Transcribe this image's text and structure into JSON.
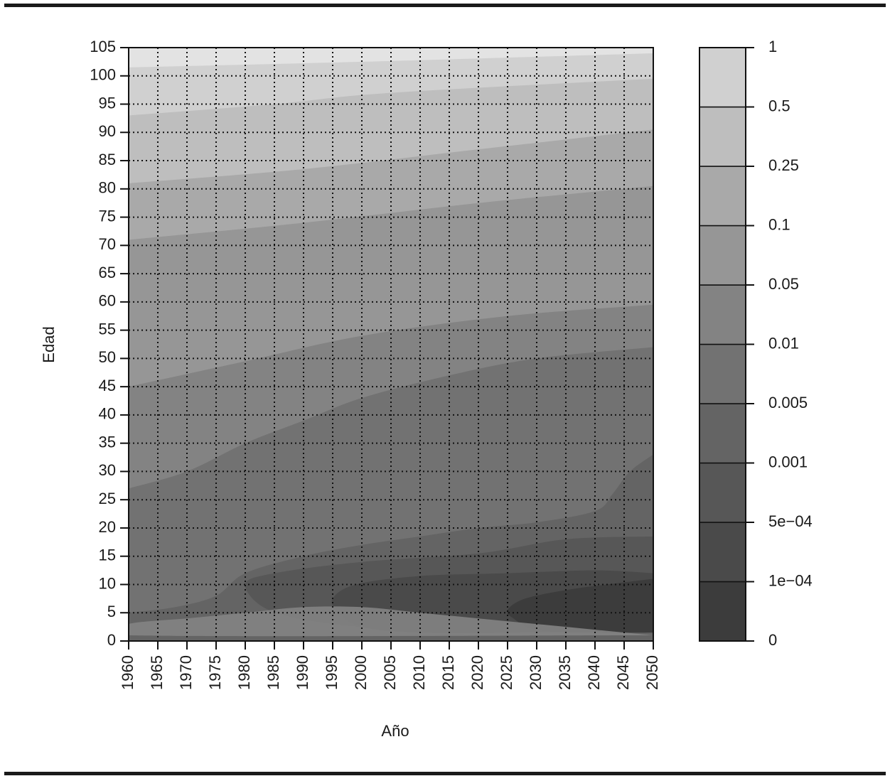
{
  "chart_data": {
    "type": "heatmap",
    "title": "",
    "xlabel": "Año",
    "ylabel": "Edad",
    "xlim": [
      1960,
      2050
    ],
    "ylim": [
      0,
      105
    ],
    "x_ticks": [
      "1960",
      "1965",
      "1970",
      "1975",
      "1980",
      "1985",
      "1990",
      "1995",
      "2000",
      "2005",
      "2010",
      "2015",
      "2020",
      "2025",
      "2030",
      "2035",
      "2040",
      "2045",
      "2050"
    ],
    "y_ticks": [
      "0",
      "5",
      "10",
      "15",
      "20",
      "25",
      "30",
      "35",
      "40",
      "45",
      "50",
      "55",
      "60",
      "65",
      "70",
      "75",
      "80",
      "85",
      "90",
      "95",
      "100",
      "105"
    ],
    "grid": true,
    "legend": {
      "position": "right",
      "scale": "nonlinear",
      "levels": [
        "0",
        "1e−04",
        "5e−04",
        "0.001",
        "0.005",
        "0.01",
        "0.05",
        "0.1",
        "0.25",
        "0.5",
        "1"
      ],
      "band_colors": [
        "#3c3c3c",
        "#4a4a4a",
        "#575757",
        "#646464",
        "#727272",
        "#838383",
        "#969696",
        "#a9a9a9",
        "#bebebe",
        "#d0d0d0",
        "#e3e3e3"
      ]
    },
    "contour_lines": [
      {
        "level": "0.5",
        "points": [
          [
            1960,
            101.5
          ],
          [
            2000,
            102.5
          ],
          [
            2050,
            104
          ]
        ]
      },
      {
        "level": "0.25",
        "points": [
          [
            1960,
            93
          ],
          [
            1985,
            95
          ],
          [
            2005,
            97
          ],
          [
            2050,
            99.5
          ]
        ]
      },
      {
        "level": "0.1",
        "points": [
          [
            1960,
            81
          ],
          [
            1990,
            83.5
          ],
          [
            2020,
            87
          ],
          [
            2050,
            90.5
          ]
        ]
      },
      {
        "level": "0.05",
        "points": [
          [
            1960,
            71
          ],
          [
            1990,
            74
          ],
          [
            2020,
            77.5
          ],
          [
            2050,
            80.5
          ]
        ]
      },
      {
        "level": "0.01",
        "points": [
          [
            1960,
            45
          ],
          [
            1980,
            49.5
          ],
          [
            2000,
            54
          ],
          [
            2025,
            57.5
          ],
          [
            2050,
            59.5
          ]
        ]
      },
      {
        "level": "0.005",
        "points": [
          [
            1960,
            27
          ],
          [
            1970,
            30
          ],
          [
            1980,
            35
          ],
          [
            1990,
            39
          ],
          [
            2000,
            43
          ],
          [
            2015,
            47
          ],
          [
            2030,
            50
          ],
          [
            2050,
            52
          ]
        ]
      }
    ],
    "contour_regions": [
      {
        "level": "0.001",
        "points": [
          [
            2050,
            1
          ],
          [
            2040,
            2
          ],
          [
            2030,
            3
          ],
          [
            2020,
            4
          ],
          [
            2010,
            5
          ],
          [
            2000,
            6
          ],
          [
            1990,
            6
          ],
          [
            1980,
            5
          ],
          [
            1970,
            4
          ],
          [
            1960,
            3
          ],
          [
            1960,
            1
          ],
          [
            2050,
            1
          ]
        ]
      },
      {
        "level": "5e−04",
        "points": [
          [
            2050,
            1.5
          ],
          [
            2030,
            2
          ],
          [
            2010,
            2
          ],
          [
            1995,
            3
          ],
          [
            1984,
            5.5
          ],
          [
            1980,
            10
          ],
          [
            1985,
            12
          ],
          [
            2000,
            14
          ],
          [
            2020,
            15.5
          ],
          [
            2035,
            18
          ],
          [
            2050,
            18.5
          ]
        ]
      },
      {
        "level": "1e−04",
        "points": [
          [
            2050,
            1.5
          ],
          [
            2030,
            1.5
          ],
          [
            2010,
            1.5
          ],
          [
            2000,
            2.5
          ],
          [
            1996,
            5
          ],
          [
            1995,
            7.5
          ],
          [
            1999,
            10
          ],
          [
            2010,
            11.5
          ],
          [
            2025,
            12
          ],
          [
            2040,
            12.5
          ],
          [
            2050,
            12
          ]
        ]
      },
      {
        "level": "0",
        "points": [
          [
            2050,
            1.5
          ],
          [
            2040,
            1.5
          ],
          [
            2030,
            2
          ],
          [
            2026,
            4
          ],
          [
            2025,
            5.5
          ],
          [
            2028,
            7.5
          ],
          [
            2035,
            9
          ],
          [
            2042,
            10
          ],
          [
            2050,
            11
          ]
        ]
      },
      {
        "level": "0.001 (upper pocket)",
        "points": [
          [
            2050,
            33
          ],
          [
            2046,
            30
          ],
          [
            2043,
            26
          ],
          [
            2040,
            23
          ],
          [
            2030,
            21
          ],
          [
            2020,
            20
          ],
          [
            2010,
            18.5
          ],
          [
            2000,
            17
          ],
          [
            1990,
            15
          ],
          [
            1980,
            12
          ],
          [
            1975,
            8
          ],
          [
            1968,
            6
          ],
          [
            1960,
            5
          ]
        ]
      }
    ]
  }
}
